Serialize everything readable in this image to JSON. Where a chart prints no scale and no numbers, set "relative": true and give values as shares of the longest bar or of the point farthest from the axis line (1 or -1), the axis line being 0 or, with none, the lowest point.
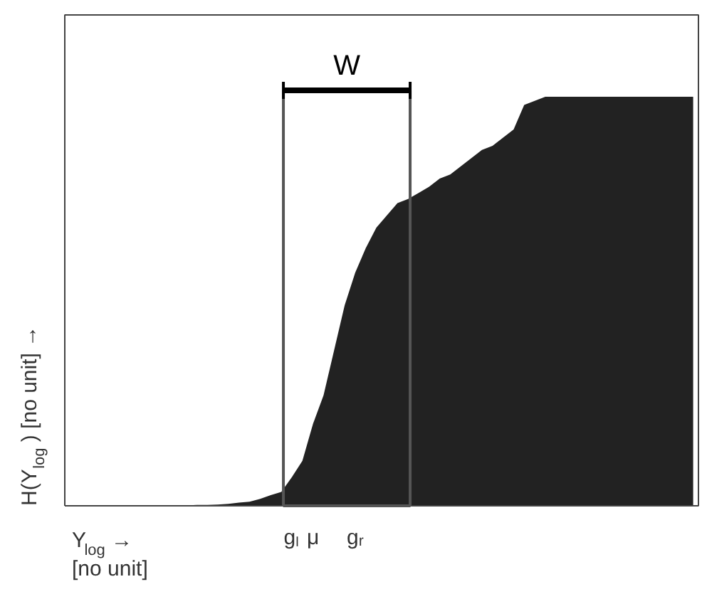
{
  "chart_data": {
    "type": "area",
    "relative": true,
    "xlabel": "Y$_{log}$  →\n[no unit]",
    "ylabel": "H(Y$_{log}$)   [no unit] →",
    "categories": [
      null,
      null,
      null,
      null,
      null,
      null,
      null,
      null,
      null,
      null,
      null,
      null,
      null,
      null,
      null,
      null,
      null,
      null,
      null,
      null,
      null,
      "gₗ",
      null,
      "μ",
      null,
      null,
      null,
      "gᵣ",
      null,
      null,
      null,
      null,
      null,
      null,
      null,
      null,
      null,
      null,
      null,
      null,
      null,
      null,
      null,
      null,
      null,
      null,
      null,
      null,
      null,
      null,
      null,
      null,
      null,
      null,
      null,
      null,
      null,
      null,
      null,
      null
    ],
    "series": [
      {
        "color": "#222222",
        "values": [
          0,
          0,
          0,
          0,
          0,
          0,
          0,
          0,
          0,
          0,
          0.001,
          0.001,
          0.002,
          0.002,
          0.003,
          0.005,
          0.008,
          0.01,
          0.017,
          0.026,
          0.034,
          0.07,
          0.11,
          0.2,
          0.27,
          0.38,
          0.49,
          0.57,
          0.63,
          0.68,
          0.71,
          0.74,
          0.75,
          0.765,
          0.78,
          0.8,
          0.81,
          0.83,
          0.85,
          0.87,
          0.88,
          0.9,
          0.92,
          0.98,
          0.99,
          1.0,
          1.0,
          1.0,
          1.0,
          1.0,
          1.0,
          1.0,
          1.0,
          1.0,
          1.0,
          1.0,
          1.0,
          1.0,
          1.0,
          1.0
        ]
      }
    ],
    "annotations": [
      "W"
    ],
    "grid": false
  }
}
